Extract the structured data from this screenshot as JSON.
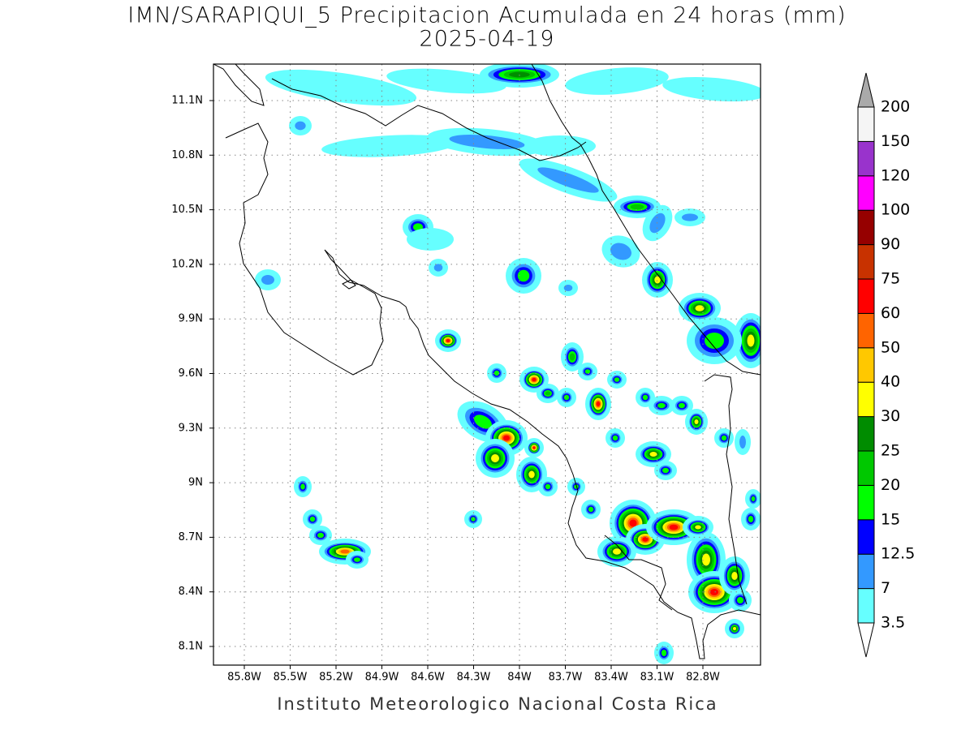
{
  "header": {
    "title": "IMN/SARAPIQUI_5 Precipitacion Acumulada en 24 horas (mm)",
    "subtitle": "2025-04-19"
  },
  "map": {
    "lon_ticks": [
      "85.8W",
      "85.5W",
      "85.2W",
      "84.9W",
      "84.6W",
      "84.3W",
      "84W",
      "83.7W",
      "83.4W",
      "83.1W",
      "82.8W"
    ],
    "lat_ticks": [
      "11.1N",
      "10.8N",
      "10.5N",
      "10.2N",
      "9.9N",
      "9.6N",
      "9.3N",
      "9N",
      "8.7N",
      "8.4N",
      "8.1N"
    ]
  },
  "colorbar": {
    "levels": [
      "3.5",
      "7",
      "12.5",
      "15",
      "20",
      "25",
      "30",
      "40",
      "50",
      "60",
      "75",
      "90",
      "100",
      "120",
      "150",
      "200"
    ],
    "colors": [
      "#ffffff",
      "#66ffff",
      "#3399ff",
      "#0000ff",
      "#00ff00",
      "#00c800",
      "#008c00",
      "#ffff00",
      "#ffc800",
      "#ff6400",
      "#ff0000",
      "#c83200",
      "#960000",
      "#ff00ff",
      "#9933cc",
      "#f5f5f5",
      "#aaaaaa"
    ]
  },
  "footer": "Instituto Meteorologico Nacional Costa Rica"
}
